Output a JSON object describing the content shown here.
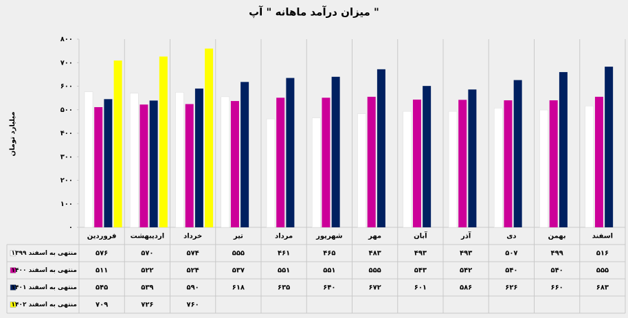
{
  "chart_data": {
    "type": "bar",
    "title": "میزان درآمد ماهانه \" آپ \"",
    "y_label": "میلیارد تومان",
    "categories": [
      "فروردین",
      "اردیبهشت",
      "خرداد",
      "تیر",
      "مرداد",
      "شهریور",
      "مهر",
      "آبان",
      "آذر",
      "دی",
      "بهمن",
      "اسفند"
    ],
    "series": [
      {
        "name": "منتهی به اسفند ۱۳۹۹",
        "color": "#ffffff",
        "values": [
          576,
          570,
          574,
          555,
          461,
          465,
          483,
          493,
          493,
          507,
          499,
          516
        ],
        "value_labels": [
          "۵۷۶",
          "۵۷۰",
          "۵۷۴",
          "۵۵۵",
          "۴۶۱",
          "۴۶۵",
          "۴۸۳",
          "۴۹۳",
          "۴۹۳",
          "۵۰۷",
          "۴۹۹",
          "۵۱۶"
        ]
      },
      {
        "name": "منتهی به اسفند ۱۴۰۰",
        "color": "#cc0099",
        "values": [
          511,
          522,
          524,
          537,
          551,
          551,
          555,
          543,
          542,
          540,
          540,
          555
        ],
        "value_labels": [
          "۵۱۱",
          "۵۲۲",
          "۵۲۴",
          "۵۳۷",
          "۵۵۱",
          "۵۵۱",
          "۵۵۵",
          "۵۴۳",
          "۵۴۲",
          "۵۴۰",
          "۵۴۰",
          "۵۵۵"
        ]
      },
      {
        "name": "منتهی به اسفند ۱۴۰۱",
        "color": "#002060",
        "values": [
          545,
          539,
          590,
          618,
          635,
          640,
          672,
          601,
          586,
          626,
          660,
          683
        ],
        "value_labels": [
          "۵۴۵",
          "۵۳۹",
          "۵۹۰",
          "۶۱۸",
          "۶۳۵",
          "۶۴۰",
          "۶۷۲",
          "۶۰۱",
          "۵۸۶",
          "۶۲۶",
          "۶۶۰",
          "۶۸۳"
        ]
      },
      {
        "name": "منتهی به اسفند ۱۴۰۲",
        "color": "#ffff00",
        "values": [
          709,
          726,
          760,
          null,
          null,
          null,
          null,
          null,
          null,
          null,
          null,
          null
        ],
        "value_labels": [
          "۷۰۹",
          "۷۲۶",
          "۷۶۰",
          null,
          null,
          null,
          null,
          null,
          null,
          null,
          null,
          null
        ]
      }
    ],
    "ylim": [
      0,
      800
    ],
    "yticks": [
      {
        "value": 0,
        "label": "۰"
      },
      {
        "value": 100,
        "label": "۱۰۰"
      },
      {
        "value": 200,
        "label": "۲۰۰"
      },
      {
        "value": 300,
        "label": "۳۰۰"
      },
      {
        "value": 400,
        "label": "۴۰۰"
      },
      {
        "value": 500,
        "label": "۵۰۰"
      },
      {
        "value": 600,
        "label": "۶۰۰"
      },
      {
        "value": 700,
        "label": "۷۰۰"
      },
      {
        "value": 800,
        "label": "۸۰۰"
      }
    ]
  }
}
